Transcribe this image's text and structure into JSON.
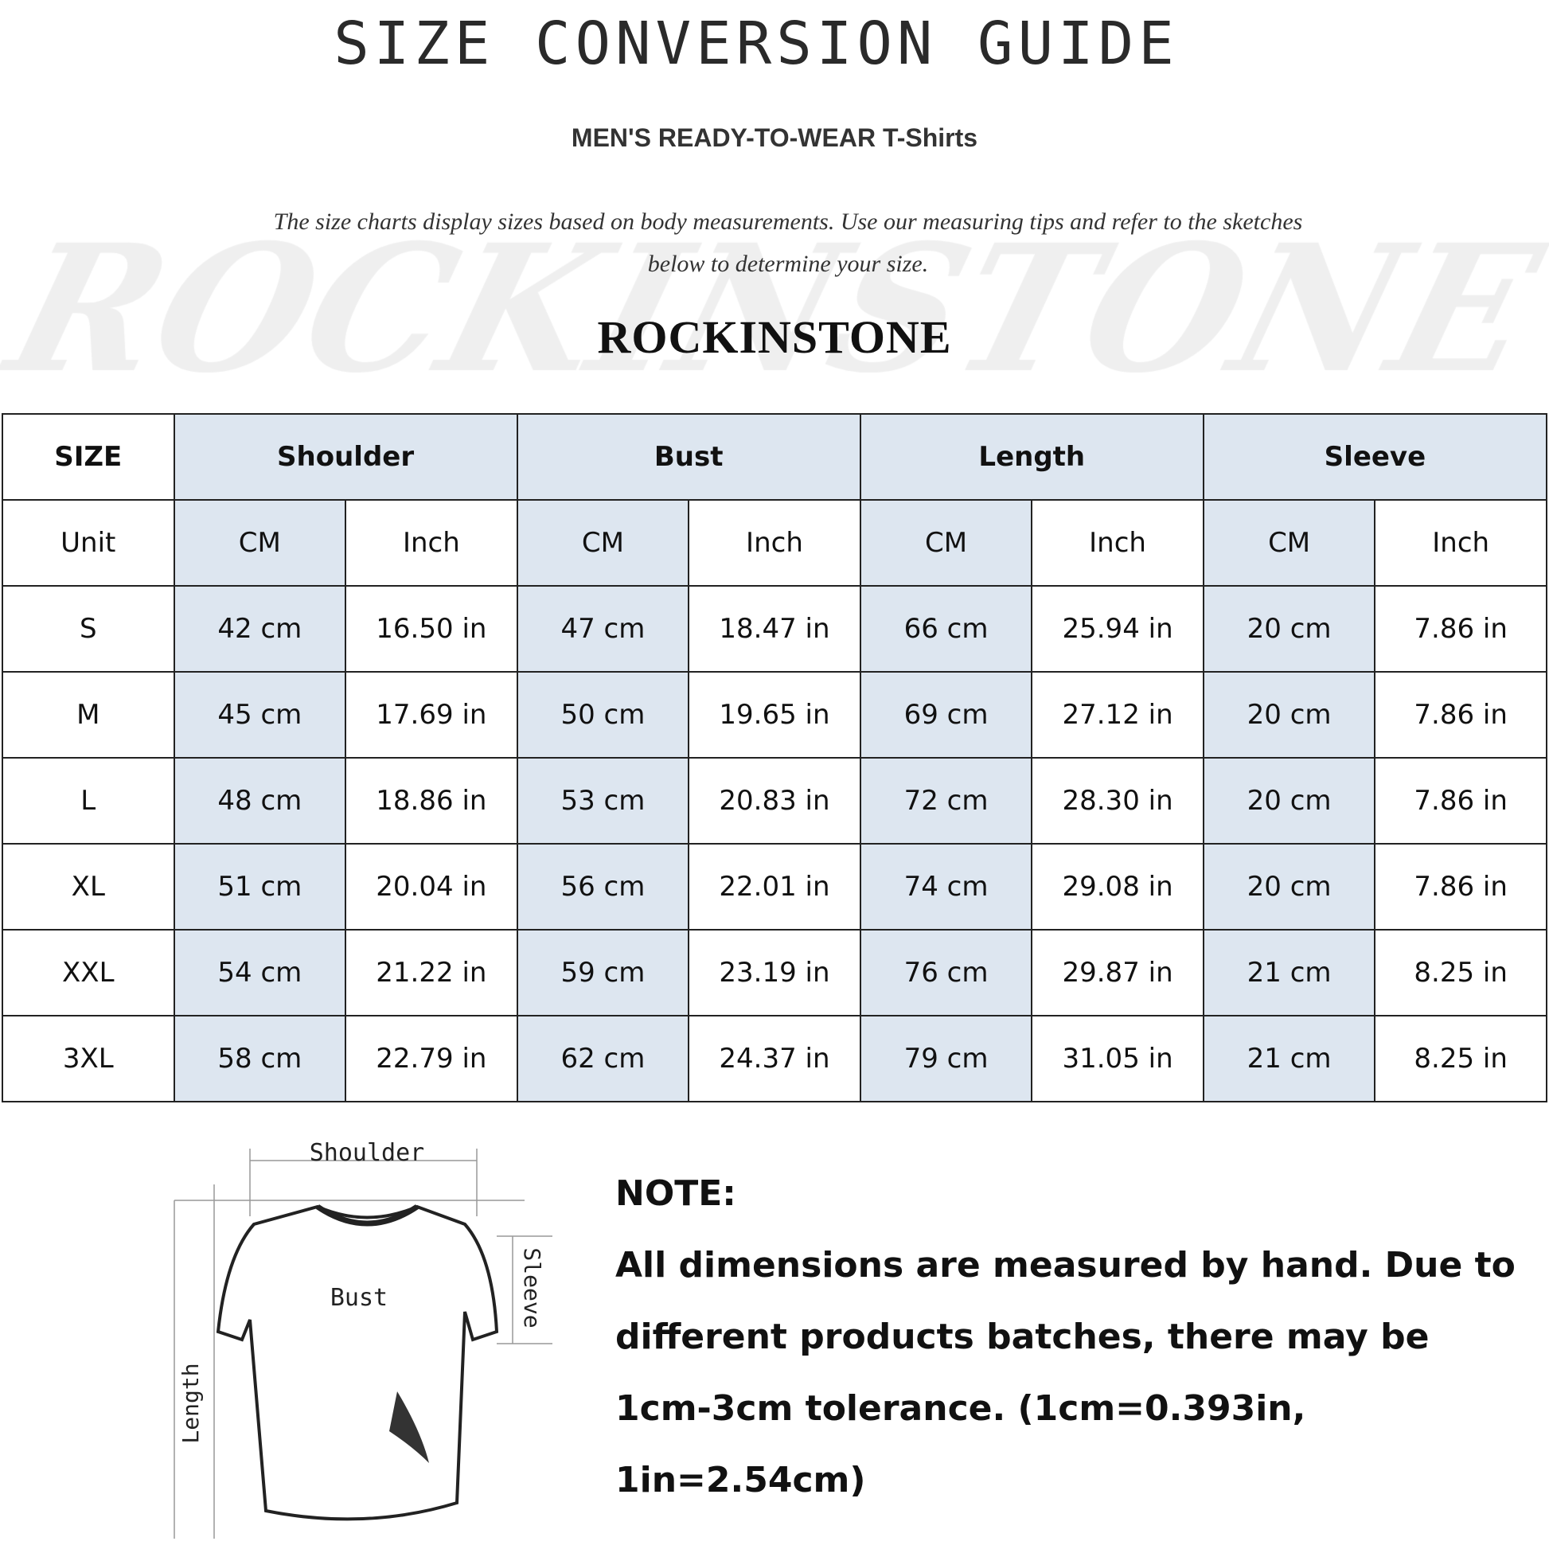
{
  "title": "SIZE CONVERSION GUIDE",
  "subtitle": "MEN'S READY-TO-WEAR T-Shirts",
  "description": [
    "The size charts display sizes based on body measurements. Use our measuring tips and refer to the sketches",
    "below to determine your size."
  ],
  "brand": "ROCKINSTONE",
  "watermark": "ROCKINSTONE",
  "table": {
    "header": [
      "SIZE",
      "Shoulder",
      "Bust",
      "Length",
      "Sleeve"
    ],
    "unit_row": [
      "Unit",
      "CM",
      "Inch",
      "CM",
      "Inch",
      "CM",
      "Inch",
      "CM",
      "Inch"
    ],
    "rows": [
      [
        "S",
        "42 cm",
        "16.50 in",
        "47 cm",
        "18.47  in",
        "66 cm",
        "25.94  in",
        "20 cm",
        "7.86  in"
      ],
      [
        "M",
        "45 cm",
        "17.69  in",
        "50 cm",
        "19.65  in",
        "69 cm",
        "27.12  in",
        "20 cm",
        "7.86  in"
      ],
      [
        "L",
        "48 cm",
        "18.86  in",
        "53 cm",
        "20.83  in",
        "72 cm",
        "28.30  in",
        "20 cm",
        "7.86  in"
      ],
      [
        "XL",
        "51 cm",
        "20.04  in",
        "56 cm",
        "22.01  in",
        "74 cm",
        "29.08  in",
        "20 cm",
        "7.86  in"
      ],
      [
        "XXL",
        "54 cm",
        "21.22  in",
        "59 cm",
        "23.19  in",
        "76 cm",
        "29.87  in",
        "21 cm",
        "8.25  in"
      ],
      [
        "3XL",
        "58 cm",
        "22.79  in",
        "62 cm",
        "24.37  in",
        "79 cm",
        "31.05  in",
        "21 cm",
        "8.25  in"
      ]
    ],
    "highlight_color": "#dde6f0"
  },
  "diagram": {
    "shoulder": "Shoulder",
    "bust": "Bust",
    "length": "Length",
    "sleeve": "Sleeve"
  },
  "note": {
    "heading": "NOTE:",
    "lines": [
      "All dimensions are measured by hand. Due to",
      "different products batches, there may be",
      "1cm-3cm tolerance. (1cm=0.393in, 1in=2.54cm)"
    ]
  }
}
